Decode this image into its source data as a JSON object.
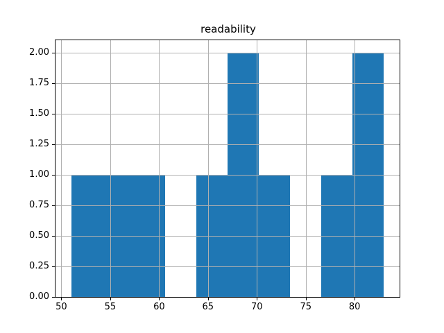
{
  "chart_data": {
    "type": "bar",
    "subtype": "histogram",
    "title": "readability",
    "xlabel": "",
    "ylabel": "",
    "bin_edges": [
      51.0,
      54.2,
      57.4,
      60.6,
      63.8,
      67.0,
      70.2,
      73.4,
      76.6,
      79.8,
      83.0
    ],
    "counts": [
      1,
      1,
      1,
      0,
      1,
      2,
      1,
      0,
      1,
      2
    ],
    "xlim": [
      49.4,
      84.6
    ],
    "ylim": [
      0,
      2.1
    ],
    "x_ticks": [
      50,
      55,
      60,
      65,
      70,
      75,
      80
    ],
    "x_tick_labels": [
      "50",
      "55",
      "60",
      "65",
      "70",
      "75",
      "80"
    ],
    "y_ticks": [
      0.0,
      0.25,
      0.5,
      0.75,
      1.0,
      1.25,
      1.5,
      1.75,
      2.0
    ],
    "y_tick_labels": [
      "0.00",
      "0.25",
      "0.50",
      "0.75",
      "1.00",
      "1.25",
      "1.50",
      "1.75",
      "2.00"
    ],
    "grid": true,
    "grid_above_bars": true,
    "legend": null,
    "colors": {
      "bar": "#1f77b4",
      "grid": "#b0b0b0",
      "spine": "#000000",
      "tick": "#000000",
      "text": "#000000",
      "background": "#ffffff"
    }
  }
}
